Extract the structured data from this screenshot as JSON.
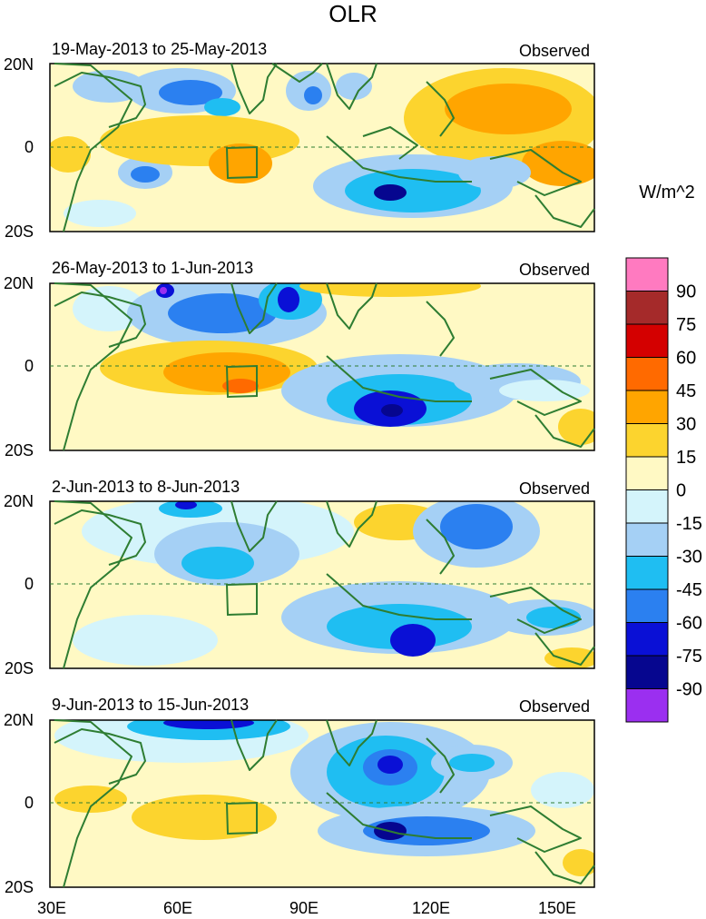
{
  "title": "OLR",
  "chart_data": {
    "type": "heatmap",
    "variable": "OLR",
    "units": "W/m^2",
    "x_ticks": [
      "30E",
      "60E",
      "90E",
      "120E",
      "150E"
    ],
    "y_ticks": [
      "20N",
      "0",
      "20S"
    ],
    "xlim": [
      30,
      160
    ],
    "ylim": [
      -20,
      20
    ],
    "panels": [
      {
        "period": "19-May-2013 to 25-May-2013",
        "label": "Observed"
      },
      {
        "period": "26-May-2013 to 1-Jun-2013",
        "label": "Observed"
      },
      {
        "period": "2-Jun-2013 to 8-Jun-2013",
        "label": "Observed"
      },
      {
        "period": "9-Jun-2013 to 15-Jun-2013",
        "label": "Observed"
      }
    ],
    "colorbar": {
      "title": "W/m^2",
      "labels": [
        "90",
        "75",
        "60",
        "45",
        "30",
        "15",
        "0",
        "-15",
        "-30",
        "-45",
        "-60",
        "-75",
        "-90"
      ],
      "colors": [
        "#ff7ac0",
        "#a52a2a",
        "#d40000",
        "#ff6a00",
        "#ffa500",
        "#fcd42e",
        "#fff9c4",
        "#d4f4fb",
        "#a5d0f5",
        "#1fbef2",
        "#2b80f0",
        "#0a10d6",
        "#06068f",
        "#9b2ff0"
      ]
    }
  }
}
